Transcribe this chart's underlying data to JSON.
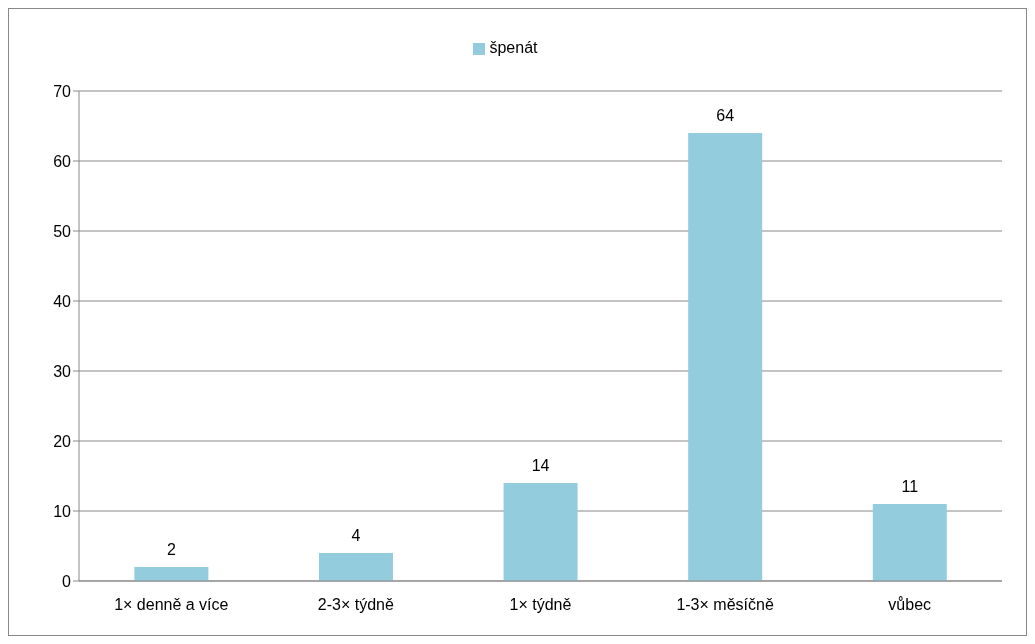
{
  "chart_data": {
    "type": "bar",
    "categories": [
      "1× denně a více",
      "2-3× týdně",
      "1× týdně",
      "1-3× měsíčně",
      "vůbec"
    ],
    "series": [
      {
        "name": "špenát",
        "color": "#93cddd",
        "values": [
          2,
          4,
          14,
          64,
          11
        ]
      }
    ],
    "ylim": [
      0,
      70
    ],
    "yticks": [
      0,
      10,
      20,
      30,
      40,
      50,
      60,
      70
    ],
    "grid": "y",
    "legend": "top",
    "data_labels": true
  }
}
